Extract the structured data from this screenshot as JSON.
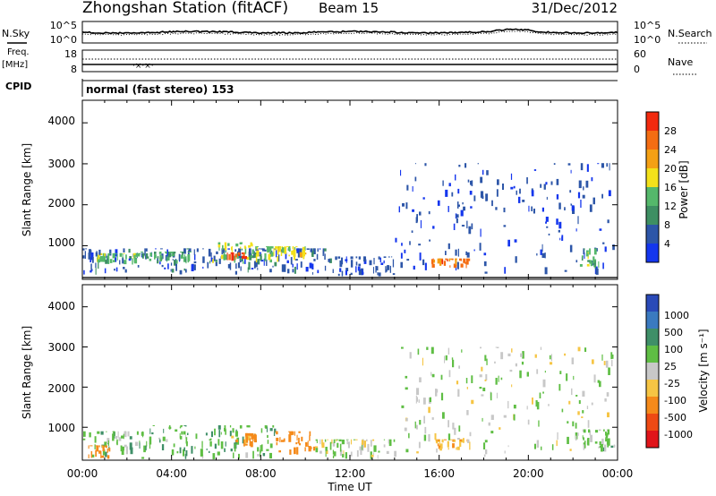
{
  "header": {
    "station": "Zhongshan Station (fitACF)",
    "beam": "Beam 15",
    "date": "31/Dec/2012"
  },
  "noise_panel": {
    "left_label": "N.Sky",
    "right_label": "N.Search",
    "left_ticks": [
      "10^5",
      "10^0"
    ],
    "right_ticks": [
      "10^5",
      "10^0"
    ]
  },
  "freq_panel": {
    "left_label_1": "Freq.",
    "left_label_2": "[MHz]",
    "right_label": "Nave",
    "left_ticks": [
      "18",
      "8"
    ],
    "right_ticks": [
      "60",
      "0"
    ]
  },
  "cpid": {
    "label": "CPID",
    "text": "normal (fast stereo) 153"
  },
  "power_panel": {
    "ylabel": "Slant Range [km]",
    "yticks": [
      "4000",
      "3000",
      "2000",
      "1000"
    ],
    "colorbar_label": "Power [dB]",
    "colorbar_ticks": [
      "28",
      "24",
      "20",
      "16",
      "12",
      "8",
      "4"
    ],
    "colors": [
      "#1436ee",
      "#2d56a8",
      "#3e8f63",
      "#55b86b",
      "#f3e11a",
      "#f4a014",
      "#f46d12",
      "#f22a0e"
    ]
  },
  "velocity_panel": {
    "ylabel": "Slant Range [km]",
    "yticks": [
      "4000",
      "3000",
      "2000",
      "1000"
    ],
    "colorbar_label": "Velocity [m s⁻¹]",
    "colorbar_ticks": [
      "1000",
      "500",
      "100",
      "25",
      "-25",
      "-100",
      "-500",
      "-1000"
    ],
    "colors": [
      "#2a4ab8",
      "#3a7ac0",
      "#3f8f68",
      "#5fbe44",
      "#c8c8c8",
      "#f6c544",
      "#f58a1a",
      "#ee4a14",
      "#e0141a"
    ]
  },
  "time_axis": {
    "ticks": [
      "00:00",
      "04:00",
      "08:00",
      "12:00",
      "16:00",
      "20:00",
      "00:00"
    ],
    "label": "Time UT"
  },
  "chart_data": {
    "type": "heatmap",
    "title": "Zhongshan Station (fitACF) Beam 15",
    "xlabel": "Time UT",
    "ylabel": "Slant Range [km]",
    "xlim": [
      0,
      24
    ],
    "ylim": [
      180,
      4550
    ],
    "power_range_dB": [
      0,
      32
    ],
    "velocity_range_ms": [
      -1000,
      1000
    ],
    "nsky_log10_approx": 2.3,
    "freq_MHz_approx": 12,
    "nave_approx": 18,
    "power_regions": [
      {
        "t0": 0.0,
        "t1": 11.2,
        "r0": 250,
        "r1": 900,
        "dB": 6
      },
      {
        "t0": 0.6,
        "t1": 2.6,
        "r0": 500,
        "r1": 780,
        "dB": 14
      },
      {
        "t0": 2.6,
        "t1": 4.8,
        "r0": 520,
        "r1": 820,
        "dB": 13
      },
      {
        "t0": 5.8,
        "t1": 7.6,
        "r0": 500,
        "r1": 1050,
        "dB": 15
      },
      {
        "t0": 6.4,
        "t1": 7.3,
        "r0": 550,
        "r1": 800,
        "dB": 29
      },
      {
        "t0": 7.6,
        "t1": 9.0,
        "r0": 520,
        "r1": 950,
        "dB": 16
      },
      {
        "t0": 8.8,
        "t1": 10.2,
        "r0": 600,
        "r1": 950,
        "dB": 18
      },
      {
        "t0": 11.2,
        "t1": 14.0,
        "r0": 200,
        "r1": 700,
        "dB": 5
      },
      {
        "t0": 14.0,
        "t1": 23.8,
        "r0": 250,
        "r1": 3000,
        "dB": 5
      },
      {
        "t0": 15.6,
        "t1": 17.4,
        "r0": 400,
        "r1": 650,
        "dB": 26
      },
      {
        "t0": 22.2,
        "t1": 23.2,
        "r0": 400,
        "r1": 900,
        "dB": 14
      }
    ],
    "velocity_regions": [
      {
        "t0": 0.0,
        "t1": 3.0,
        "r0": 200,
        "r1": 900,
        "v": 60
      },
      {
        "t0": 0.2,
        "t1": 1.2,
        "r0": 200,
        "r1": 550,
        "v": -150
      },
      {
        "t0": 3.0,
        "t1": 8.6,
        "r0": 200,
        "r1": 1050,
        "v": 80
      },
      {
        "t0": 6.6,
        "t1": 7.8,
        "r0": 500,
        "r1": 850,
        "v": -120
      },
      {
        "t0": 8.6,
        "t1": 10.4,
        "r0": 300,
        "r1": 900,
        "v": -300
      },
      {
        "t0": 10.4,
        "t1": 14.0,
        "r0": 200,
        "r1": 700,
        "v": 10
      },
      {
        "t0": 14.0,
        "t1": 23.9,
        "r0": 250,
        "r1": 3000,
        "v": 15
      },
      {
        "t0": 15.8,
        "t1": 17.4,
        "r0": 400,
        "r1": 700,
        "v": -80
      },
      {
        "t0": 22.0,
        "t1": 23.9,
        "r0": 350,
        "r1": 950,
        "v": 60
      }
    ]
  }
}
